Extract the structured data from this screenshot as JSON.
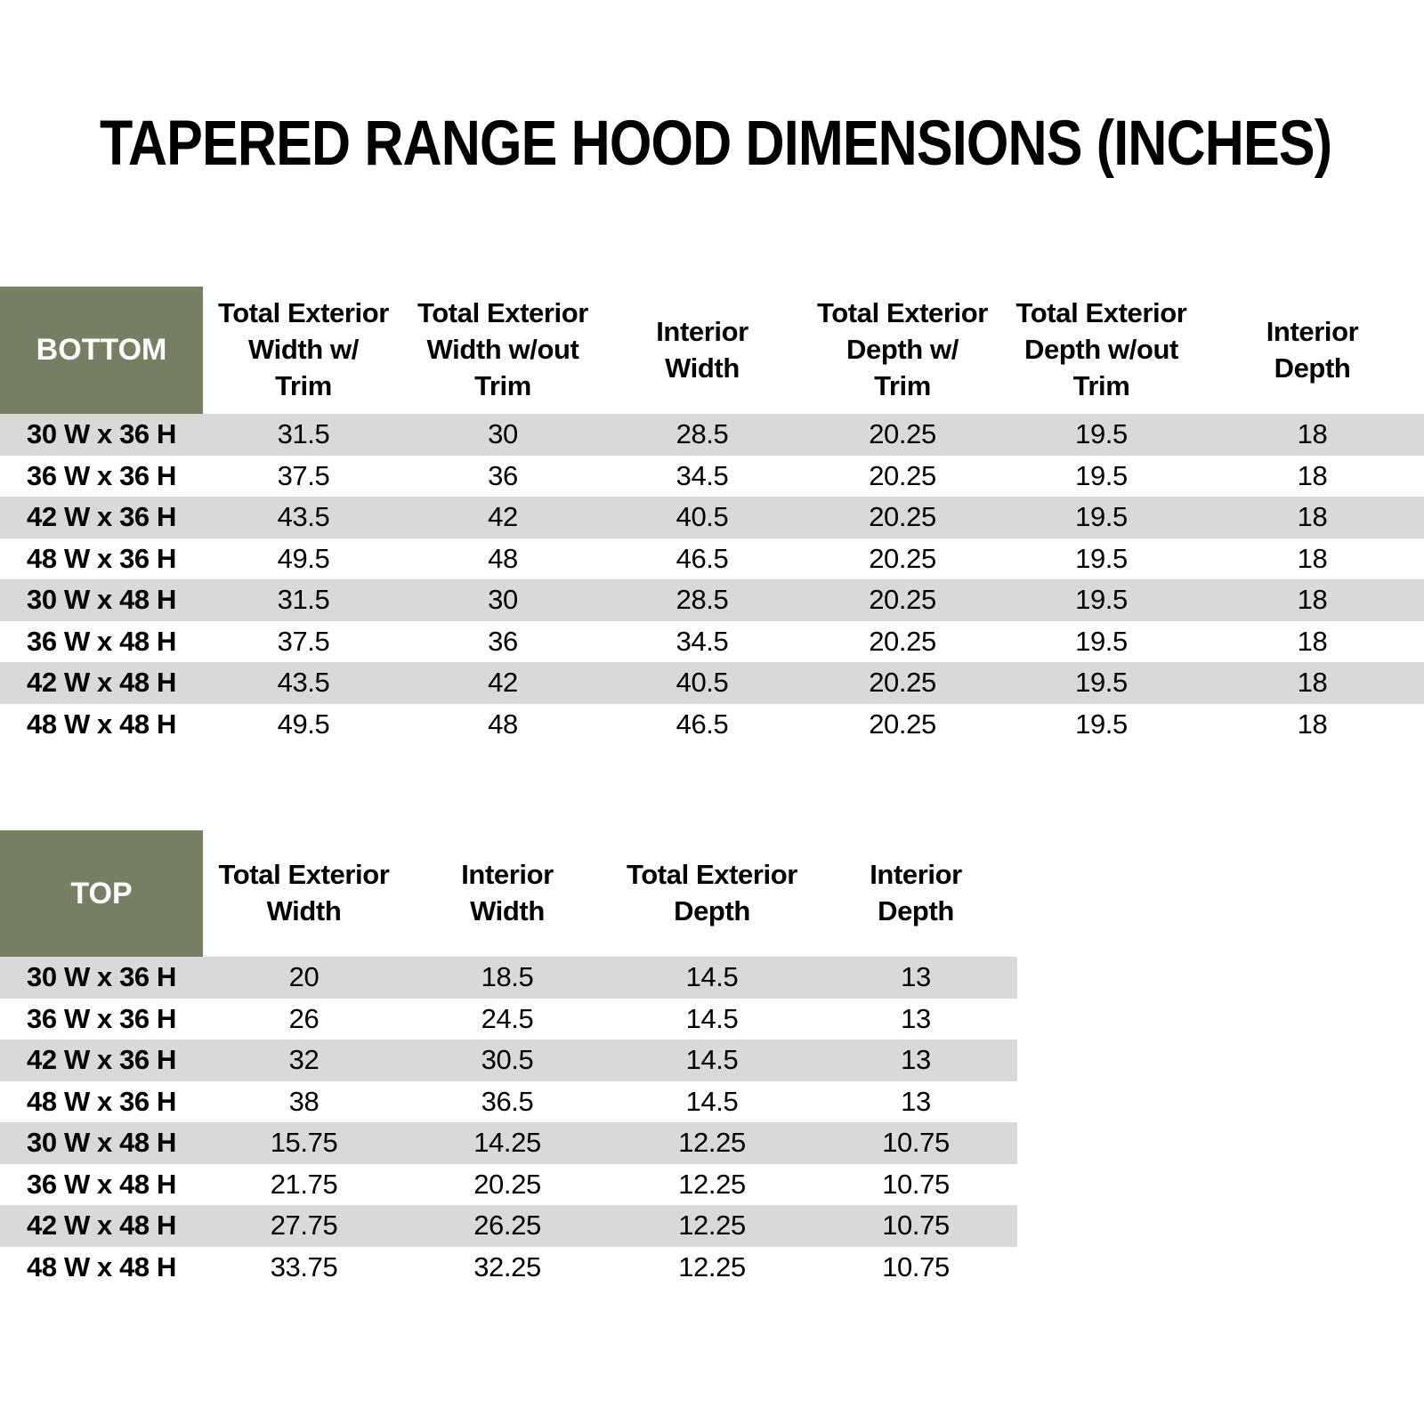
{
  "page": {
    "title": "TAPERED RANGE HOOD DIMENSIONS (INCHES)"
  },
  "colors": {
    "accent_green": "#767E63",
    "stripe_gray": "#D9D9D9",
    "text_black": "#000000",
    "corner_text_white": "#FFFFFF"
  },
  "bottom_table": {
    "corner_label": "BOTTOM",
    "headers": [
      "Total Exterior\nWidth w/\nTrim",
      "Total Exterior\nWidth w/out\nTrim",
      "Interior\nWidth",
      "Total Exterior\nDepth w/\nTrim",
      "Total Exterior\nDepth w/out\nTrim",
      "Interior\nDepth"
    ],
    "rows": [
      {
        "label": "30 W x 36 H",
        "values": [
          "31.5",
          "30",
          "28.5",
          "20.25",
          "19.5",
          "18"
        ]
      },
      {
        "label": "36 W x 36 H",
        "values": [
          "37.5",
          "36",
          "34.5",
          "20.25",
          "19.5",
          "18"
        ]
      },
      {
        "label": "42 W x 36 H",
        "values": [
          "43.5",
          "42",
          "40.5",
          "20.25",
          "19.5",
          "18"
        ]
      },
      {
        "label": "48 W x 36 H",
        "values": [
          "49.5",
          "48",
          "46.5",
          "20.25",
          "19.5",
          "18"
        ]
      },
      {
        "label": "30 W x 48 H",
        "values": [
          "31.5",
          "30",
          "28.5",
          "20.25",
          "19.5",
          "18"
        ]
      },
      {
        "label": "36 W x 48 H",
        "values": [
          "37.5",
          "36",
          "34.5",
          "20.25",
          "19.5",
          "18"
        ]
      },
      {
        "label": "42 W x 48 H",
        "values": [
          "43.5",
          "42",
          "40.5",
          "20.25",
          "19.5",
          "18"
        ]
      },
      {
        "label": "48 W x 48 H",
        "values": [
          "49.5",
          "48",
          "46.5",
          "20.25",
          "19.5",
          "18"
        ]
      }
    ]
  },
  "top_table": {
    "corner_label": "TOP",
    "headers": [
      "Total Exterior\nWidth",
      "Interior\nWidth",
      "Total Exterior\nDepth",
      "Interior\nDepth"
    ],
    "rows": [
      {
        "label": "30 W x 36 H",
        "values": [
          "20",
          "18.5",
          "14.5",
          "13"
        ]
      },
      {
        "label": "36 W x 36 H",
        "values": [
          "26",
          "24.5",
          "14.5",
          "13"
        ]
      },
      {
        "label": "42 W x 36 H",
        "values": [
          "32",
          "30.5",
          "14.5",
          "13"
        ]
      },
      {
        "label": "48 W x 36 H",
        "values": [
          "38",
          "36.5",
          "14.5",
          "13"
        ]
      },
      {
        "label": "30 W x 48 H",
        "values": [
          "15.75",
          "14.25",
          "12.25",
          "10.75"
        ]
      },
      {
        "label": "36 W x 48 H",
        "values": [
          "21.75",
          "20.25",
          "12.25",
          "10.75"
        ]
      },
      {
        "label": "42 W x 48 H",
        "values": [
          "27.75",
          "26.25",
          "12.25",
          "10.75"
        ]
      },
      {
        "label": "48 W x 48 H",
        "values": [
          "33.75",
          "32.25",
          "12.25",
          "10.75"
        ]
      }
    ]
  }
}
